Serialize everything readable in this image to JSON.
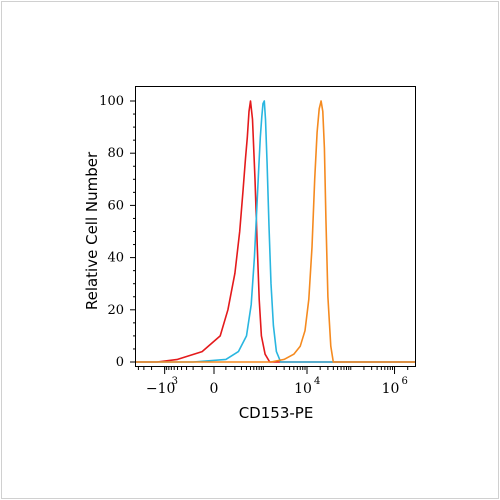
{
  "chart_data": {
    "type": "line",
    "title": "",
    "xlabel": "CD153-PE",
    "ylabel": "Relative Cell Number",
    "ylim": [
      0,
      100
    ],
    "y_ticks": [
      {
        "value": 0,
        "label": "0"
      },
      {
        "value": 20,
        "label": "20"
      },
      {
        "value": 40,
        "label": "40"
      },
      {
        "value": 60,
        "label": "60"
      },
      {
        "value": 80,
        "label": "80"
      },
      {
        "value": 100,
        "label": "100"
      }
    ],
    "x_scale": "biexponential",
    "xlim": [
      -10000,
      5000000
    ],
    "x_ticks": [
      {
        "value": -1000,
        "base": "−10",
        "exp": "3"
      },
      {
        "value": 0,
        "base": "0",
        "exp": ""
      },
      {
        "value": 10000,
        "base": "10",
        "exp": "4"
      },
      {
        "value": 1000000,
        "base": "10",
        "exp": "6"
      }
    ],
    "legend": "none",
    "grid": false,
    "series": [
      {
        "color": "#e41a1c",
        "x": [
          -10000,
          -1500,
          -500,
          -100,
          50,
          120,
          200,
          270,
          330,
          380,
          420,
          460,
          500,
          560,
          640,
          720,
          800,
          900,
          1100,
          1400,
          5000000
        ],
        "y": [
          0,
          0,
          1,
          4,
          10,
          20,
          34,
          50,
          66,
          78,
          86,
          96,
          100,
          93,
          70,
          45,
          24,
          10,
          3,
          0,
          0
        ]
      },
      {
        "color": "#29b6e0",
        "x": [
          -10000,
          -200,
          100,
          250,
          400,
          520,
          620,
          700,
          780,
          850,
          920,
          980,
          1050,
          1120,
          1220,
          1350,
          1500,
          1700,
          2000,
          2500,
          5000000
        ],
        "y": [
          0,
          0,
          1,
          4,
          10,
          22,
          40,
          58,
          74,
          86,
          94,
          99,
          100,
          93,
          76,
          52,
          30,
          14,
          4,
          0,
          0
        ]
      },
      {
        "color": "#f58a1f",
        "x": [
          -10000,
          1500,
          3000,
          5000,
          7000,
          9000,
          11000,
          13000,
          15000,
          17000,
          19000,
          21000,
          23000,
          25000,
          27000,
          30000,
          35000,
          40000,
          5000000
        ],
        "y": [
          0,
          0,
          1,
          3,
          6,
          12,
          24,
          44,
          70,
          88,
          97,
          100,
          96,
          82,
          55,
          25,
          6,
          0,
          0
        ]
      }
    ]
  }
}
